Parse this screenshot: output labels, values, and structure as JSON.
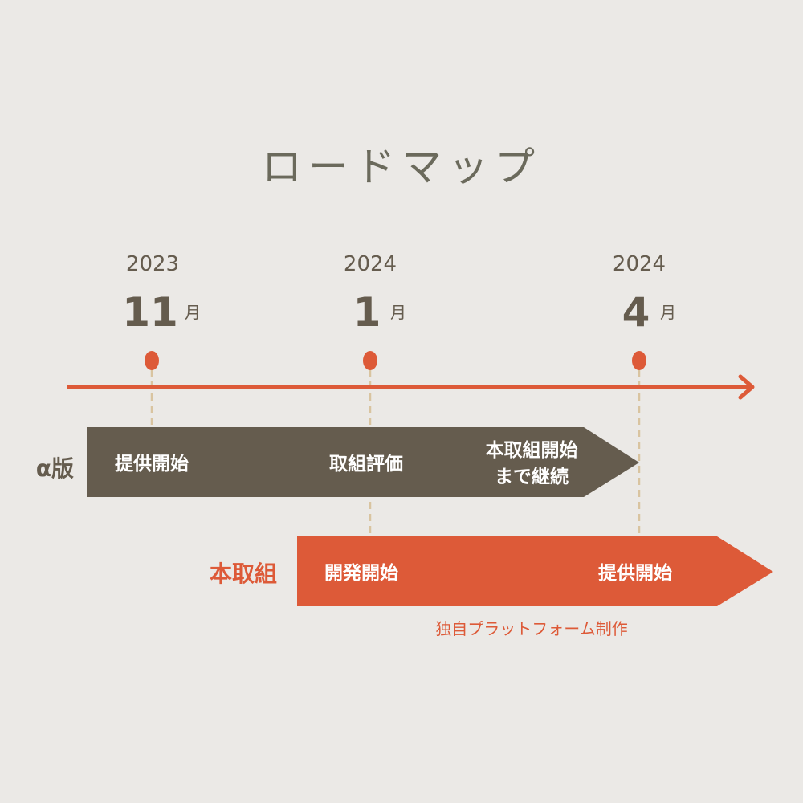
{
  "title": "ロードマップ",
  "colors": {
    "background": "#ebe9e6",
    "dark": "#655c4e",
    "accent": "#dd5a38",
    "guide": "#d9c4a0"
  },
  "milestones": [
    {
      "year": "2023",
      "month": "11",
      "unit": "月"
    },
    {
      "year": "2024",
      "month": "1",
      "unit": "月"
    },
    {
      "year": "2024",
      "month": "4",
      "unit": "月"
    }
  ],
  "alpha": {
    "label": "α版",
    "items": [
      "提供開始",
      "取組評価",
      "本取組開始",
      "まで継続"
    ]
  },
  "main": {
    "label": "本取組",
    "items": [
      "開発開始",
      "提供開始"
    ],
    "caption": "独自プラットフォーム制作"
  }
}
